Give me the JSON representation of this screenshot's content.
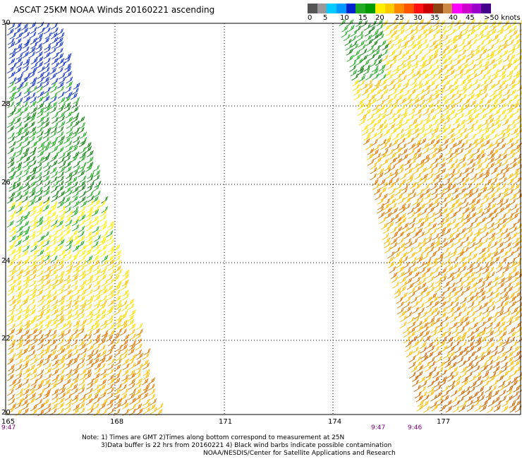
{
  "title": "ASCAT 25KM NOAA Winds 20160221 ascending",
  "colorbar": {
    "colors": [
      "#555555",
      "#999999",
      "#00ccff",
      "#0099ff",
      "#0022cc",
      "#22aa22",
      "#009900",
      "#ffee00",
      "#ffcc00",
      "#ff8800",
      "#ff5500",
      "#ff1111",
      "#cc0000",
      "#8b4513",
      "#cc8844",
      "#ff00ff",
      "#cc00cc",
      "#9900cc",
      "#440088"
    ],
    "labels": [
      "0",
      "5",
      "10",
      "15",
      "20",
      "25",
      "30",
      "35",
      "40",
      "45",
      ">50 knots"
    ]
  },
  "latitudes": [
    "30",
    "28",
    "26",
    "24",
    "22",
    "20"
  ],
  "longitudes": [
    "165",
    "168",
    "171",
    "174",
    "177"
  ],
  "times": [
    "9:47",
    "9:47",
    "9:46"
  ],
  "notes": [
    "Note: 1) Times are GMT 2)Times along bottom correspond to measurement at 25N",
    "3)Data buffer is 22 hrs from 20160221 4) Black wind barbs indicate possible contamination",
    "NOAA/NESDIS/Center for Satellite Applications and Research"
  ]
}
